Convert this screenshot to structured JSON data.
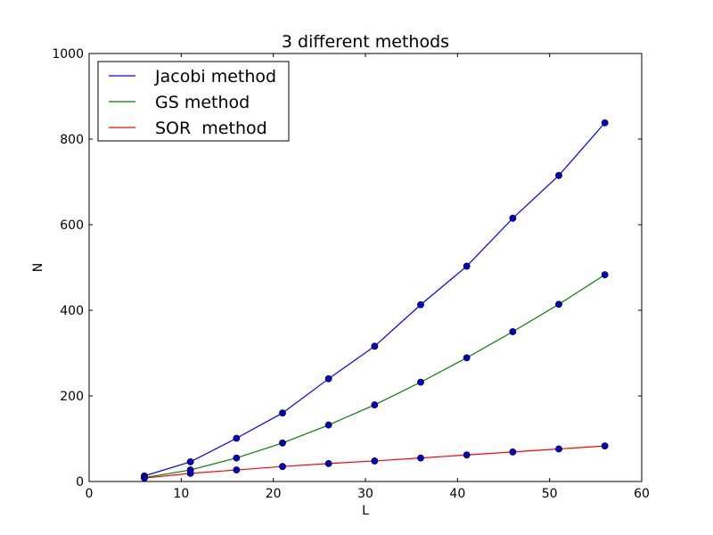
{
  "chart_data": {
    "type": "line",
    "title": "3 different methods",
    "xlabel": "L",
    "ylabel": "N",
    "xlim": [
      0,
      60
    ],
    "ylim": [
      0,
      1000
    ],
    "xticks": [
      "0",
      "10",
      "20",
      "30",
      "40",
      "50",
      "60"
    ],
    "yticks": [
      "0",
      "200",
      "400",
      "600",
      "800",
      "1000"
    ],
    "legend_position": "top-left",
    "marker_color": "#0000cc",
    "x": [
      6,
      11,
      16,
      21,
      26,
      31,
      36,
      41,
      46,
      51,
      56
    ],
    "series": [
      {
        "name": "Jacobi method",
        "color": "#0000ff",
        "values": [
          13,
          46,
          101,
          160,
          240,
          316,
          413,
          503,
          615,
          715,
          838
        ]
      },
      {
        "name": "GS method",
        "color": "#008000",
        "values": [
          9,
          27,
          55,
          90,
          132,
          179,
          232,
          289,
          350,
          414,
          483
        ]
      },
      {
        "name": "SOR  method",
        "color": "#ff0000",
        "values": [
          8,
          19,
          27,
          35,
          42,
          48,
          55,
          62,
          69,
          76,
          83
        ]
      }
    ]
  }
}
